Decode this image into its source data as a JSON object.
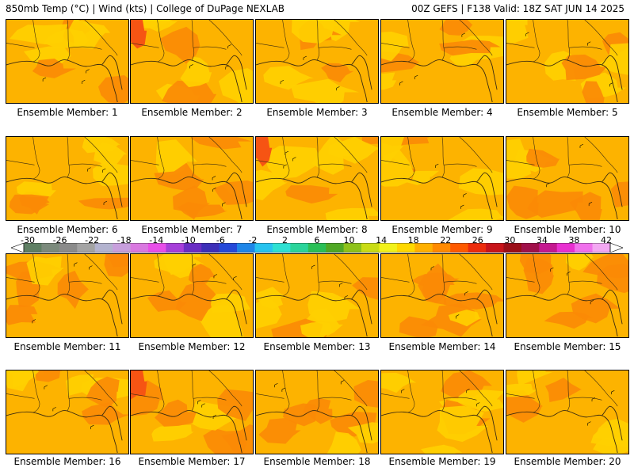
{
  "header": {
    "left": "850mb Temp (°C) | Wind (kts) | College of DuPage NEXLAB",
    "right": "00Z GEFS | F138 Valid: 18Z SAT JUN 14 2025"
  },
  "members": [
    {
      "label": "Ensemble Member: 1"
    },
    {
      "label": "Ensemble Member: 2"
    },
    {
      "label": "Ensemble Member: 3"
    },
    {
      "label": "Ensemble Member: 4"
    },
    {
      "label": "Ensemble Member: 5"
    },
    {
      "label": "Ensemble Member: 6"
    },
    {
      "label": "Ensemble Member: 7"
    },
    {
      "label": "Ensemble Member: 8"
    },
    {
      "label": "Ensemble Member: 9"
    },
    {
      "label": "Ensemble Member: 10"
    },
    {
      "label": "Ensemble Member: 11"
    },
    {
      "label": "Ensemble Member: 12"
    },
    {
      "label": "Ensemble Member: 13"
    },
    {
      "label": "Ensemble Member: 14"
    },
    {
      "label": "Ensemble Member: 15"
    },
    {
      "label": "Ensemble Member: 16"
    },
    {
      "label": "Ensemble Member: 17"
    },
    {
      "label": "Ensemble Member: 18"
    },
    {
      "label": "Ensemble Member: 19"
    },
    {
      "label": "Ensemble Member: 20"
    }
  ],
  "colorbar": {
    "labels": [
      "-30",
      "-26",
      "-22",
      "-18",
      "-14",
      "-10",
      "-6",
      "-2",
      "2",
      "6",
      "10",
      "14",
      "18",
      "22",
      "26",
      "30",
      "34",
      "38",
      "42"
    ],
    "colors": [
      "#5f7f64",
      "#7b8a7c",
      "#8b8b8b",
      "#a3a3a3",
      "#b3b3cf",
      "#c79fdc",
      "#d978e0",
      "#e84ee8",
      "#a63fd9",
      "#6a2ec4",
      "#3d2fb8",
      "#2549d8",
      "#1e86e8",
      "#27c3ef",
      "#2ee0d2",
      "#2ad49a",
      "#2bbf57",
      "#4fa825",
      "#8ec21b",
      "#c9dc15",
      "#f2f21a",
      "#ffd800",
      "#ffb000",
      "#ff8a00",
      "#ff5a00",
      "#ec2c0c",
      "#c8141a",
      "#9b0f18",
      "#a0104a",
      "#c41890",
      "#e830d0",
      "#f070ec",
      "#f3a8f2"
    ]
  },
  "palette": {
    "base": "#fdb300",
    "light": "#ffd000",
    "dark": "#fb8a06",
    "hot": "#f65413"
  }
}
